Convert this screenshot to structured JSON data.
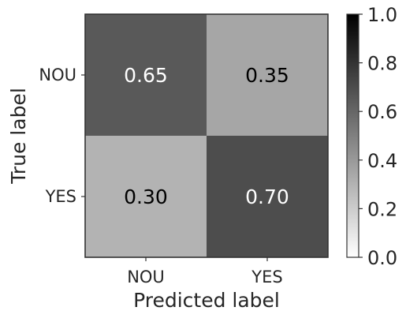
{
  "chart_data": {
    "type": "heatmap",
    "title": "",
    "xlabel": "Predicted label",
    "ylabel": "True label",
    "x_categories": [
      "NOU",
      "YES"
    ],
    "y_categories": [
      "NOU",
      "YES"
    ],
    "values": [
      [
        0.65,
        0.35
      ],
      [
        0.3,
        0.7
      ]
    ],
    "value_labels": [
      [
        "0.65",
        "0.35"
      ],
      [
        "0.30",
        "0.70"
      ]
    ],
    "colorbar": {
      "min": 0.0,
      "max": 1.0,
      "ticks": [
        "0.0",
        "0.2",
        "0.4",
        "0.6",
        "0.8",
        "1.0"
      ],
      "colormap": "grayscale",
      "low_color": "#ffffff",
      "high_color": "#000000"
    },
    "grid": false,
    "legend": "colorbar-right"
  }
}
